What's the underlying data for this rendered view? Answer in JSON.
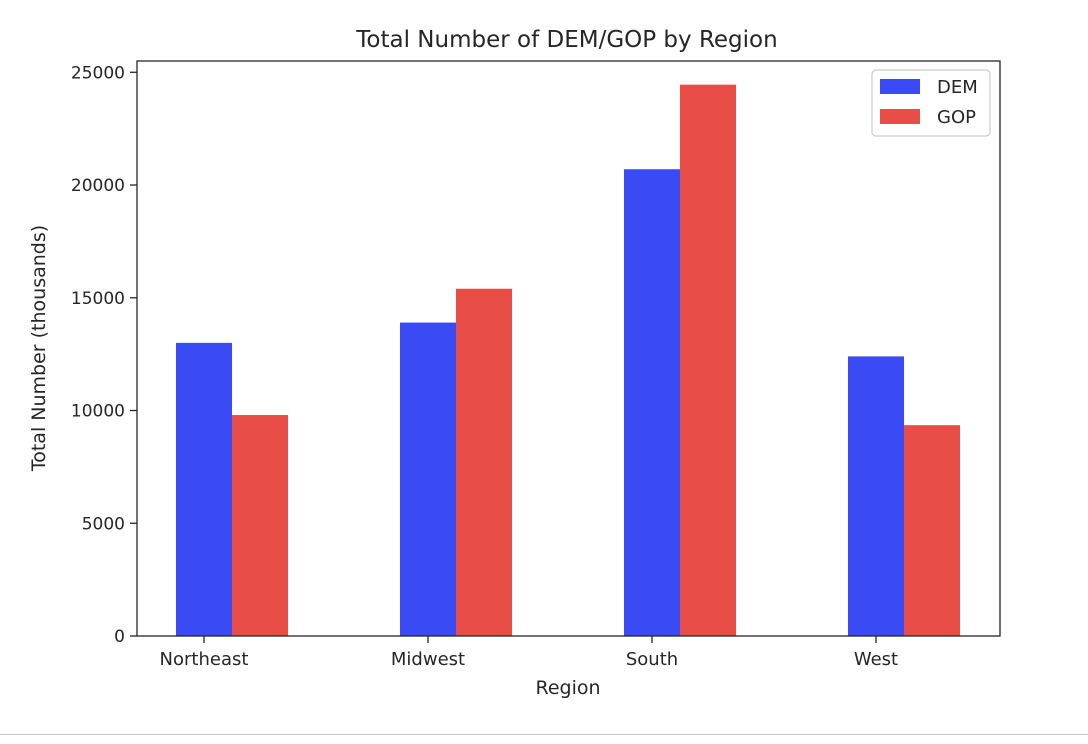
{
  "chart_data": {
    "type": "bar",
    "title": "Total Number of DEM/GOP by Region",
    "xlabel": "Region",
    "ylabel": "Total Number (thousands)",
    "categories": [
      "Northeast",
      "Midwest",
      "South",
      "West"
    ],
    "ylim": [
      0,
      25500
    ],
    "yticks": [
      0,
      5000,
      10000,
      15000,
      20000,
      25000
    ],
    "grid": false,
    "legend_position": "top-right",
    "series": [
      {
        "name": "DEM",
        "color": "#3a4af5",
        "values": [
          13000,
          13900,
          20700,
          12400
        ]
      },
      {
        "name": "GOP",
        "color": "#e84d47",
        "values": [
          9800,
          15400,
          24450,
          9350
        ]
      }
    ]
  }
}
